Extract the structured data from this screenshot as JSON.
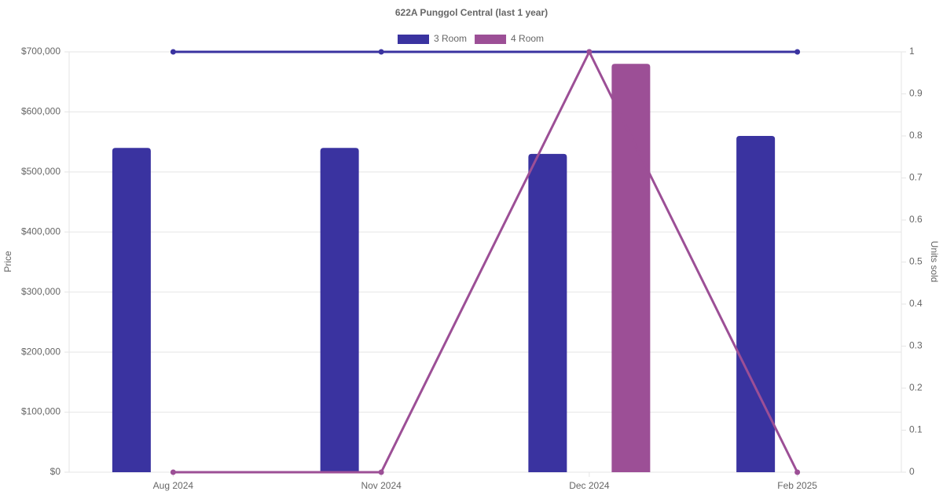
{
  "chart_data": {
    "type": "bar-line",
    "title": "622A Punggol Central (last 1 year)",
    "y_label": "Price",
    "y2_label": "Units sold",
    "categories": [
      "Aug 2024",
      "Nov 2024",
      "Dec 2024",
      "Feb 2025"
    ],
    "series": [
      {
        "name": "3 Room",
        "color": "#3a33a0",
        "values": [
          540000,
          540000,
          530000,
          560000
        ],
        "units": [
          1,
          1,
          1,
          1
        ]
      },
      {
        "name": "4 Room",
        "color": "#9c4f96",
        "values": [
          null,
          null,
          680000,
          null
        ],
        "units": [
          0,
          0,
          1,
          0
        ]
      }
    ],
    "ylim": [
      0,
      700000
    ],
    "yticks": [
      {
        "value": 0,
        "label": "$0"
      },
      {
        "value": 100000,
        "label": "$100,000"
      },
      {
        "value": 200000,
        "label": "$200,000"
      },
      {
        "value": 300000,
        "label": "$300,000"
      },
      {
        "value": 400000,
        "label": "$400,000"
      },
      {
        "value": 500000,
        "label": "$500,000"
      },
      {
        "value": 600000,
        "label": "$600,000"
      },
      {
        "value": 700000,
        "label": "$700,000"
      }
    ],
    "y2lim": [
      0,
      1
    ],
    "y2ticks": [
      0,
      0.1,
      0.2,
      0.3,
      0.4,
      0.5,
      0.6,
      0.7,
      0.8,
      0.9,
      1
    ],
    "grid": true
  }
}
